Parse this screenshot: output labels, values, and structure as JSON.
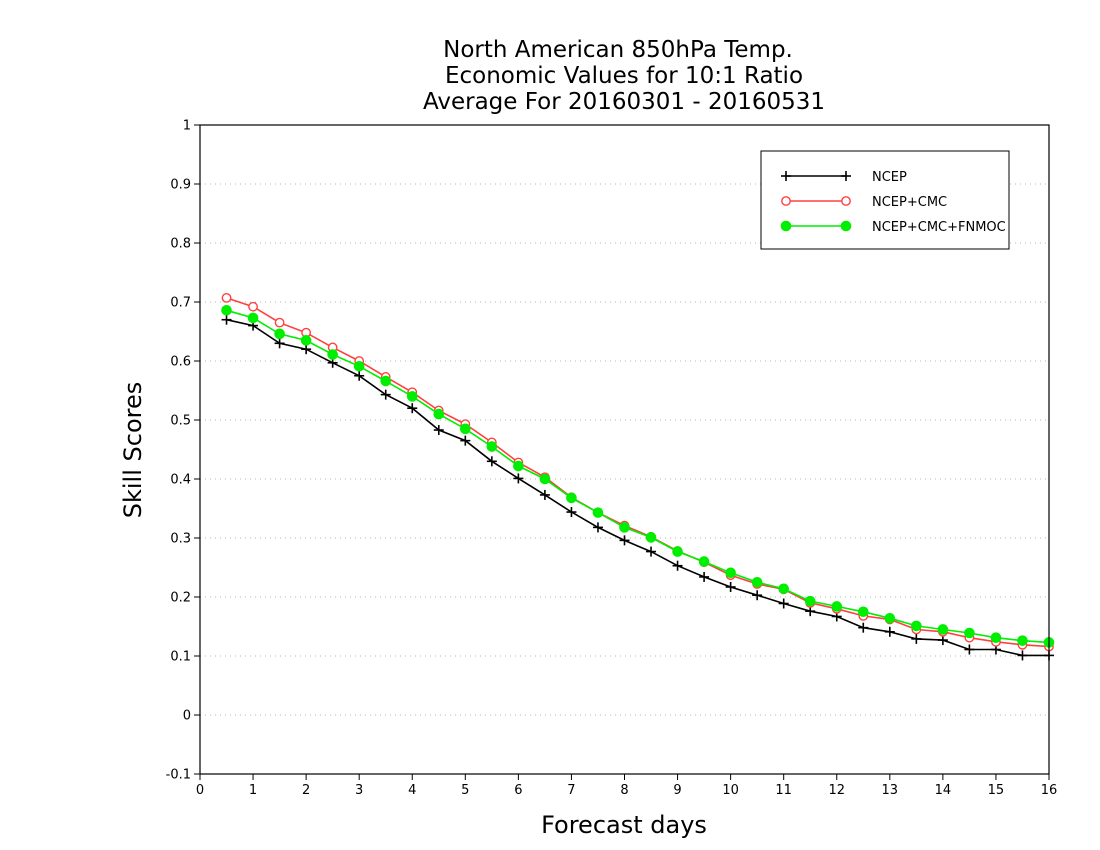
{
  "chart_data": {
    "type": "line",
    "title": [
      "North American 850hPa Temp.",
      "Economic Values for 10:1 Ratio",
      "Average For 20160301 - 20160531"
    ],
    "xlabel": "Forecast days",
    "ylabel": "Skill Scores",
    "xlim": [
      0,
      16
    ],
    "ylim": [
      -0.1,
      1
    ],
    "xticks": [
      "0",
      "1",
      "2",
      "3",
      "4",
      "5",
      "6",
      "7",
      "8",
      "9",
      "10",
      "11",
      "12",
      "13",
      "14",
      "15",
      "16"
    ],
    "yticks": [
      "-0.1",
      "0",
      "0.1",
      "0.2",
      "0.3",
      "0.4",
      "0.5",
      "0.6",
      "0.7",
      "0.8",
      "0.9",
      "1"
    ],
    "grid": "horizontal dotted",
    "legend_position": "top-right",
    "x": [
      0.5,
      1,
      1.5,
      2,
      2.5,
      3,
      3.5,
      4,
      4.5,
      5,
      5.5,
      6,
      6.5,
      7,
      7.5,
      8,
      8.5,
      9,
      9.5,
      10,
      10.5,
      11,
      11.5,
      12,
      12.5,
      13,
      13.5,
      14,
      14.5,
      15,
      15.5,
      16
    ],
    "series": [
      {
        "name": "NCEP",
        "color": "#000000",
        "marker": "plus",
        "values": [
          0.67,
          0.66,
          0.63,
          0.62,
          0.597,
          0.575,
          0.543,
          0.52,
          0.483,
          0.465,
          0.43,
          0.401,
          0.373,
          0.344,
          0.318,
          0.296,
          0.277,
          0.253,
          0.234,
          0.217,
          0.203,
          0.189,
          0.176,
          0.167,
          0.148,
          0.141,
          0.129,
          0.127,
          0.111,
          0.111,
          0.101,
          0.101
        ]
      },
      {
        "name": "NCEP+CMC",
        "color": "#ff4040",
        "marker": "open-circle",
        "values": [
          0.707,
          0.692,
          0.665,
          0.648,
          0.623,
          0.6,
          0.573,
          0.547,
          0.516,
          0.493,
          0.462,
          0.428,
          0.403,
          0.369,
          0.343,
          0.321,
          0.302,
          0.278,
          0.259,
          0.237,
          0.222,
          0.213,
          0.19,
          0.18,
          0.168,
          0.162,
          0.145,
          0.141,
          0.131,
          0.124,
          0.119,
          0.116
        ]
      },
      {
        "name": "NCEP+CMC+FNMOC",
        "color": "#00ee00",
        "marker": "filled-circle",
        "values": [
          0.686,
          0.673,
          0.646,
          0.635,
          0.611,
          0.591,
          0.566,
          0.54,
          0.51,
          0.485,
          0.455,
          0.422,
          0.4,
          0.368,
          0.343,
          0.318,
          0.301,
          0.277,
          0.26,
          0.241,
          0.225,
          0.214,
          0.193,
          0.184,
          0.175,
          0.164,
          0.151,
          0.145,
          0.139,
          0.131,
          0.126,
          0.123
        ]
      }
    ]
  }
}
